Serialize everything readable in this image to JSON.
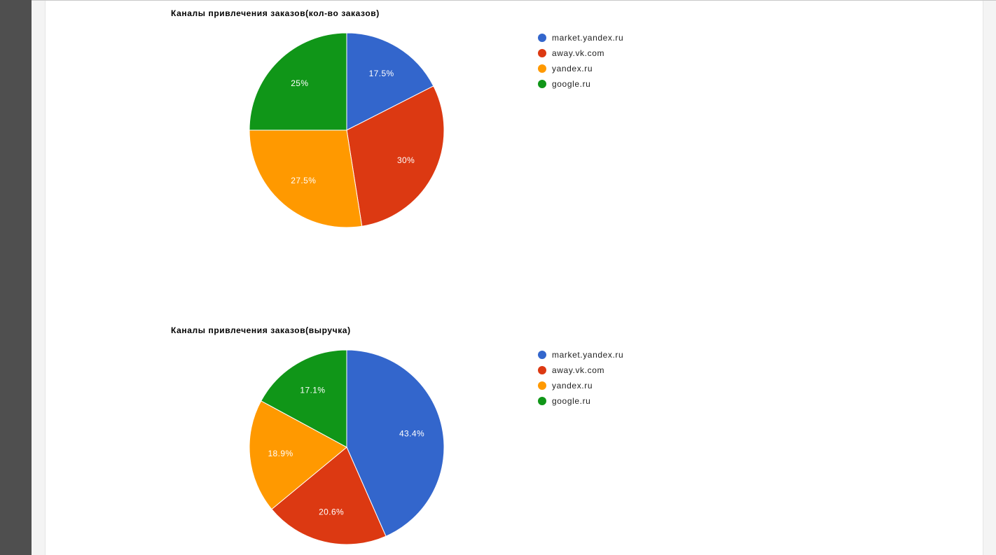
{
  "chart_data": [
    {
      "type": "pie",
      "title": "Каналы привлечения заказов(кол-во заказов)",
      "categories": [
        "market.yandex.ru",
        "away.vk.com",
        "yandex.ru",
        "google.ru"
      ],
      "values": [
        17.5,
        30,
        27.5,
        25
      ],
      "labels": [
        "17.5%",
        "30%",
        "27.5%",
        "25%"
      ],
      "colors": [
        "#3366cc",
        "#dc3912",
        "#ff9900",
        "#109618"
      ],
      "legend": "right"
    },
    {
      "type": "pie",
      "title": "Каналы привлечения заказов(выручка)",
      "categories": [
        "market.yandex.ru",
        "away.vk.com",
        "yandex.ru",
        "google.ru"
      ],
      "values": [
        43.4,
        20.6,
        18.9,
        17.1
      ],
      "labels": [
        "43.4%",
        "20.6%",
        "18.9%",
        "17.1%"
      ],
      "colors": [
        "#3366cc",
        "#dc3912",
        "#ff9900",
        "#109618"
      ],
      "legend": "right"
    }
  ]
}
